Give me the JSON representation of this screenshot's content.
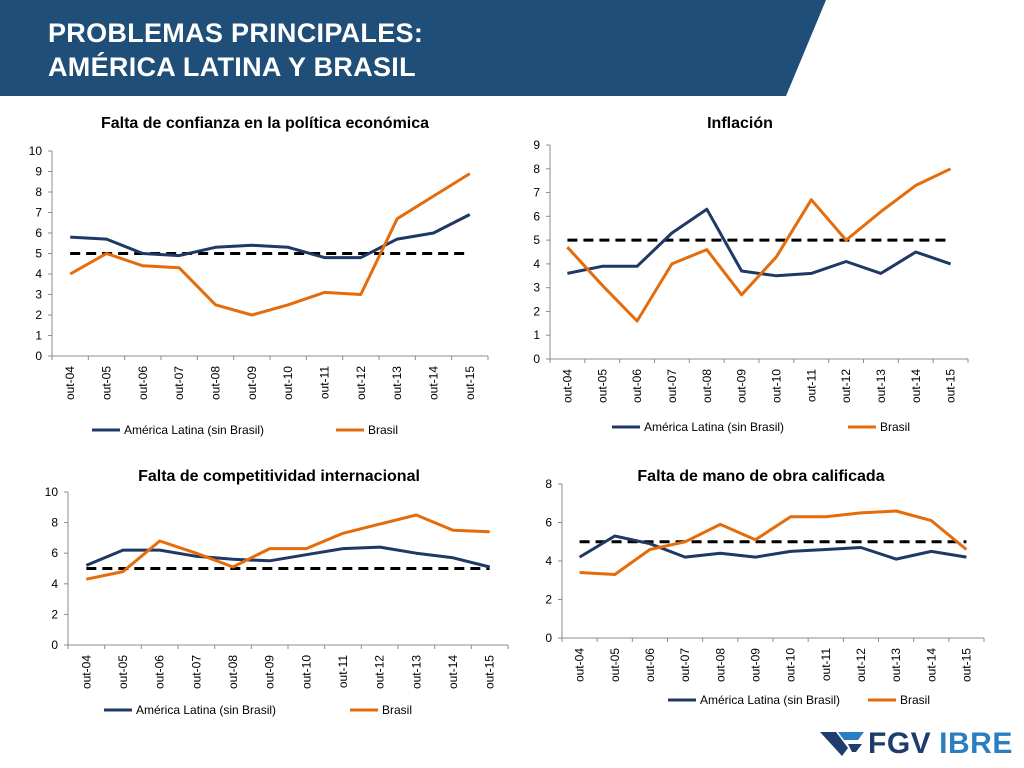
{
  "header": {
    "title_line1": "PROBLEMAS PRINCIPALES:",
    "title_line2": "AMÉRICA LATINA Y BRASIL",
    "background_color": "#1f4e79"
  },
  "logo": {
    "fgv": "FGV",
    "ibre": "IBRE",
    "fgv_color": "#1f3c6e",
    "ibre_color": "#2a7fc1"
  },
  "colors": {
    "america_latina": "#1f3864",
    "brasil": "#e46c0a",
    "reference": "#000000",
    "axis": "#8c8c8c"
  },
  "chart_data": [
    {
      "type": "line",
      "title": "Falta de confianza en la política económica",
      "categories": [
        "out-04",
        "out-05",
        "out-06",
        "out-07",
        "out-08",
        "out-09",
        "out-10",
        "out-11",
        "out-12",
        "out-13",
        "out-14",
        "out-15"
      ],
      "series": [
        {
          "name": "América Latina (sin Brasil)",
          "values": [
            5.8,
            5.7,
            5.0,
            4.9,
            5.3,
            5.4,
            5.3,
            4.8,
            4.8,
            5.7,
            6.0,
            6.9
          ]
        },
        {
          "name": "Brasil",
          "values": [
            4.0,
            5.0,
            4.4,
            4.3,
            2.5,
            2.0,
            2.5,
            3.1,
            3.0,
            6.7,
            7.8,
            8.9
          ]
        }
      ],
      "reference_line": 5,
      "ylim": [
        0,
        10
      ],
      "yticks": [
        0,
        1,
        2,
        3,
        4,
        5,
        6,
        7,
        8,
        9,
        10
      ],
      "grid": false,
      "legend": "bottom"
    },
    {
      "type": "line",
      "title": "Inflación",
      "categories": [
        "out-04",
        "out-05",
        "out-06",
        "out-07",
        "out-08",
        "out-09",
        "out-10",
        "out-11",
        "out-12",
        "out-13",
        "out-14",
        "out-15"
      ],
      "series": [
        {
          "name": "América Latina (sin Brasil)",
          "values": [
            3.6,
            3.9,
            3.9,
            5.3,
            6.3,
            3.7,
            3.5,
            3.6,
            4.1,
            3.6,
            4.5,
            4.0
          ]
        },
        {
          "name": "Brasil",
          "values": [
            4.7,
            3.1,
            1.6,
            4.0,
            4.6,
            2.7,
            4.3,
            6.7,
            5.0,
            6.2,
            7.3,
            8.0
          ]
        }
      ],
      "reference_line": 5,
      "ylim": [
        0,
        9
      ],
      "yticks": [
        0,
        1,
        2,
        3,
        4,
        5,
        6,
        7,
        8,
        9
      ],
      "grid": false,
      "legend": "bottom"
    },
    {
      "type": "line",
      "title": "Falta de competitividad internacional",
      "categories": [
        "out-04",
        "out-05",
        "out-06",
        "out-07",
        "out-08",
        "out-09",
        "out-10",
        "out-11",
        "out-12",
        "out-13",
        "out-14",
        "out-15"
      ],
      "series": [
        {
          "name": "América Latina (sin Brasil)",
          "values": [
            5.2,
            6.2,
            6.2,
            5.8,
            5.6,
            5.5,
            5.9,
            6.3,
            6.4,
            6.0,
            5.7,
            5.1
          ]
        },
        {
          "name": "Brasil",
          "values": [
            4.3,
            4.8,
            6.8,
            6.0,
            5.1,
            6.3,
            6.3,
            7.3,
            7.9,
            8.5,
            7.5,
            7.4
          ]
        }
      ],
      "reference_line": 5,
      "ylim": [
        0,
        10
      ],
      "yticks": [
        0,
        2,
        4,
        6,
        8,
        10
      ],
      "grid": false,
      "legend": "bottom"
    },
    {
      "type": "line",
      "title": "Falta de mano de obra calificada",
      "categories": [
        "out-04",
        "out-05",
        "out-06",
        "out-07",
        "out-08",
        "out-09",
        "out-10",
        "out-11",
        "out-12",
        "out-13",
        "out-14",
        "out-15"
      ],
      "series": [
        {
          "name": "América Latina (sin Brasil)",
          "values": [
            4.2,
            5.3,
            4.9,
            4.2,
            4.4,
            4.2,
            4.5,
            4.6,
            4.7,
            4.1,
            4.5,
            4.2
          ]
        },
        {
          "name": "Brasil",
          "values": [
            3.4,
            3.3,
            4.6,
            5.0,
            5.9,
            5.1,
            6.3,
            6.3,
            6.5,
            6.6,
            6.1,
            4.6
          ]
        }
      ],
      "reference_line": 5,
      "ylim": [
        0,
        8
      ],
      "yticks": [
        0,
        2,
        4,
        6,
        8
      ],
      "grid": false,
      "legend": "bottom"
    }
  ]
}
